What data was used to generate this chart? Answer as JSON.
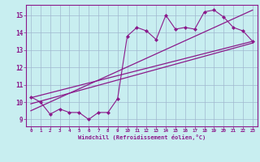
{
  "xlabel": "Windchill (Refroidissement éolien,°C)",
  "bg_color": "#c8eef0",
  "grid_color": "#a0b8d0",
  "line_color": "#8b1a8b",
  "xlim": [
    -0.5,
    23.5
  ],
  "ylim": [
    8.6,
    15.6
  ],
  "xticks": [
    0,
    1,
    2,
    3,
    4,
    5,
    6,
    7,
    8,
    9,
    10,
    11,
    12,
    13,
    14,
    15,
    16,
    17,
    18,
    19,
    20,
    21,
    22,
    23
  ],
  "yticks": [
    9,
    10,
    11,
    12,
    13,
    14,
    15
  ],
  "data_x": [
    0,
    1,
    2,
    3,
    4,
    5,
    6,
    7,
    8,
    9,
    10,
    11,
    12,
    13,
    14,
    15,
    16,
    17,
    18,
    19,
    20,
    21,
    22,
    23
  ],
  "data_y": [
    10.3,
    10.0,
    9.3,
    9.6,
    9.4,
    9.4,
    9.0,
    9.4,
    9.4,
    10.2,
    13.8,
    14.3,
    14.1,
    13.6,
    15.0,
    14.2,
    14.3,
    14.2,
    15.2,
    15.3,
    14.9,
    14.3,
    14.1,
    13.5
  ],
  "line1_x": [
    0,
    23
  ],
  "line1_y": [
    10.25,
    13.5
  ],
  "line2_x": [
    0,
    23
  ],
  "line2_y": [
    9.5,
    15.3
  ],
  "line3_x": [
    0,
    23
  ],
  "line3_y": [
    9.9,
    13.4
  ]
}
